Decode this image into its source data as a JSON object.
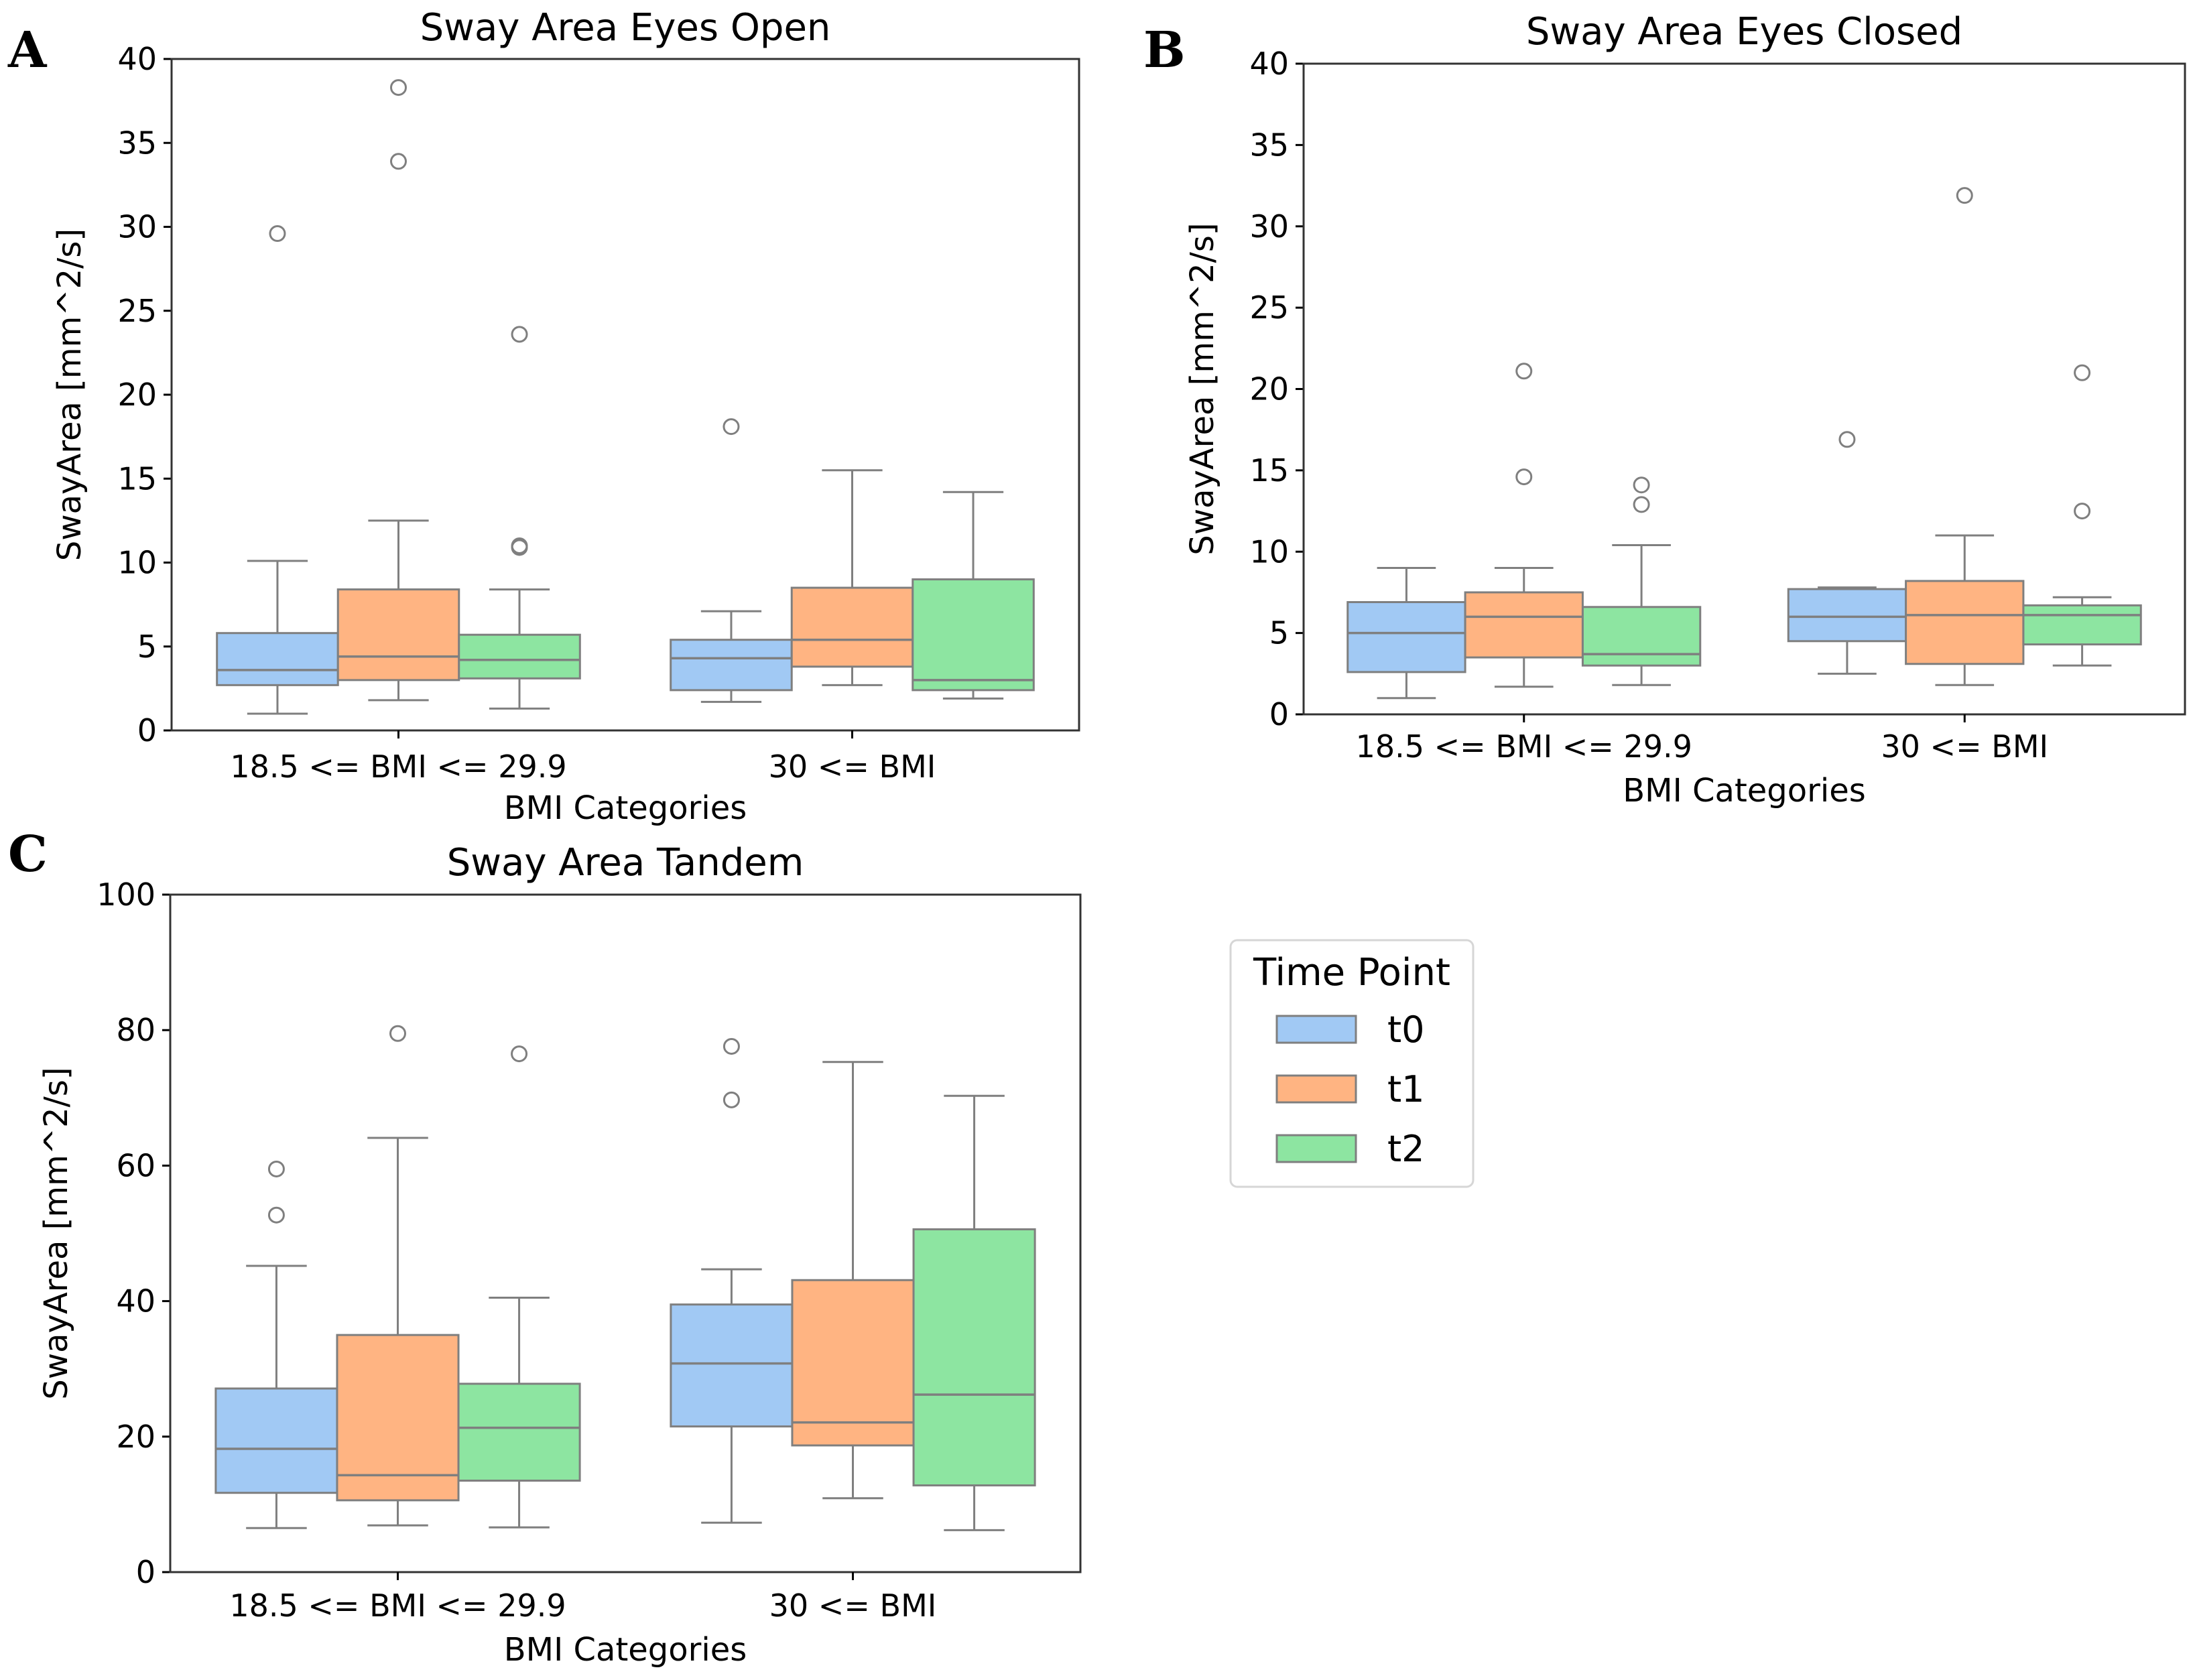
{
  "panel_letters": [
    "A",
    "B",
    "C"
  ],
  "colors": {
    "t0": "#a1c9f4",
    "t1": "#ffb482",
    "t2": "#8de5a1",
    "line": "#7f7f7f",
    "frame": "#333333"
  },
  "legend": {
    "title": "Time Point",
    "items": [
      {
        "label": "t0",
        "color": "#a1c9f4"
      },
      {
        "label": "t1",
        "color": "#ffb482"
      },
      {
        "label": "t2",
        "color": "#8de5a1"
      }
    ]
  },
  "chart_data": [
    {
      "type": "box",
      "panel": "A",
      "title": "Sway Area Eyes Open",
      "xlabel": "BMI Categories",
      "ylabel": "SwayArea [mm^2/s]",
      "ylim": [
        0,
        40
      ],
      "yticks": [
        0,
        5,
        10,
        15,
        20,
        25,
        30,
        35,
        40
      ],
      "categories": [
        "18.5 <= BMI <= 29.9",
        "30 <= BMI"
      ],
      "series": [
        {
          "name": "t0",
          "boxes": [
            {
              "whislo": 1.0,
              "q1": 2.7,
              "med": 3.6,
              "q3": 5.8,
              "whishi": 10.1,
              "fliers": [
                29.6
              ]
            },
            {
              "whislo": 1.7,
              "q1": 2.4,
              "med": 4.3,
              "q3": 5.4,
              "whishi": 7.1,
              "fliers": [
                18.1
              ]
            }
          ]
        },
        {
          "name": "t1",
          "boxes": [
            {
              "whislo": 1.8,
              "q1": 3.0,
              "med": 4.4,
              "q3": 8.4,
              "whishi": 12.5,
              "fliers": [
                33.9,
                38.3
              ]
            },
            {
              "whislo": 2.7,
              "q1": 3.8,
              "med": 5.4,
              "q3": 8.5,
              "whishi": 15.5,
              "fliers": []
            }
          ]
        },
        {
          "name": "t2",
          "boxes": [
            {
              "whislo": 1.3,
              "q1": 3.1,
              "med": 4.2,
              "q3": 5.7,
              "whishi": 8.4,
              "fliers": [
                10.9,
                11.0,
                23.6
              ]
            },
            {
              "whislo": 1.9,
              "q1": 2.4,
              "med": 3.0,
              "q3": 9.0,
              "whishi": 14.2,
              "fliers": []
            }
          ]
        }
      ]
    },
    {
      "type": "box",
      "panel": "B",
      "title": "Sway Area Eyes Closed",
      "xlabel": "BMI Categories",
      "ylabel": "SwayArea [mm^2/s]",
      "ylim": [
        0,
        40
      ],
      "yticks": [
        0,
        5,
        10,
        15,
        20,
        25,
        30,
        35,
        40
      ],
      "categories": [
        "18.5 <= BMI <= 29.9",
        "30 <= BMI"
      ],
      "series": [
        {
          "name": "t0",
          "boxes": [
            {
              "whislo": 1.0,
              "q1": 2.6,
              "med": 5.0,
              "q3": 6.9,
              "whishi": 9.0,
              "fliers": []
            },
            {
              "whislo": 2.5,
              "q1": 4.5,
              "med": 6.0,
              "q3": 7.7,
              "whishi": 7.8,
              "fliers": [
                16.9
              ]
            }
          ]
        },
        {
          "name": "t1",
          "boxes": [
            {
              "whislo": 1.7,
              "q1": 3.5,
              "med": 6.0,
              "q3": 7.5,
              "whishi": 9.0,
              "fliers": [
                14.6,
                21.1
              ]
            },
            {
              "whislo": 1.8,
              "q1": 3.1,
              "med": 6.1,
              "q3": 8.2,
              "whishi": 11.0,
              "fliers": [
                31.9
              ]
            }
          ]
        },
        {
          "name": "t2",
          "boxes": [
            {
              "whislo": 1.8,
              "q1": 3.0,
              "med": 3.7,
              "q3": 6.6,
              "whishi": 10.4,
              "fliers": [
                12.9,
                14.1
              ]
            },
            {
              "whislo": 3.0,
              "q1": 4.3,
              "med": 6.1,
              "q3": 6.7,
              "whishi": 7.2,
              "fliers": [
                12.5,
                21.0
              ]
            }
          ]
        }
      ]
    },
    {
      "type": "box",
      "panel": "C",
      "title": "Sway Area Tandem",
      "xlabel": "BMI Categories",
      "ylabel": "SwayArea [mm^2/s]",
      "ylim": [
        0,
        100
      ],
      "yticks": [
        0,
        20,
        40,
        60,
        80,
        100
      ],
      "categories": [
        "18.5 <= BMI <= 29.9",
        "30 <= BMI"
      ],
      "series": [
        {
          "name": "t0",
          "boxes": [
            {
              "whislo": 6.5,
              "q1": 11.7,
              "med": 18.2,
              "q3": 27.1,
              "whishi": 45.2,
              "fliers": [
                52.7,
                59.5
              ]
            },
            {
              "whislo": 7.3,
              "q1": 21.5,
              "med": 30.8,
              "q3": 39.5,
              "whishi": 44.7,
              "fliers": [
                69.7,
                77.6
              ]
            }
          ]
        },
        {
          "name": "t1",
          "boxes": [
            {
              "whislo": 6.9,
              "q1": 10.6,
              "med": 14.3,
              "q3": 35.0,
              "whishi": 64.1,
              "fliers": [
                79.5
              ]
            },
            {
              "whislo": 10.9,
              "q1": 18.7,
              "med": 22.1,
              "q3": 43.1,
              "whishi": 75.3,
              "fliers": []
            }
          ]
        },
        {
          "name": "t2",
          "boxes": [
            {
              "whislo": 6.6,
              "q1": 13.5,
              "med": 21.3,
              "q3": 27.8,
              "whishi": 40.5,
              "fliers": [
                76.5
              ]
            },
            {
              "whislo": 6.2,
              "q1": 12.8,
              "med": 26.2,
              "q3": 50.6,
              "whishi": 70.3,
              "fliers": []
            }
          ]
        }
      ]
    }
  ]
}
